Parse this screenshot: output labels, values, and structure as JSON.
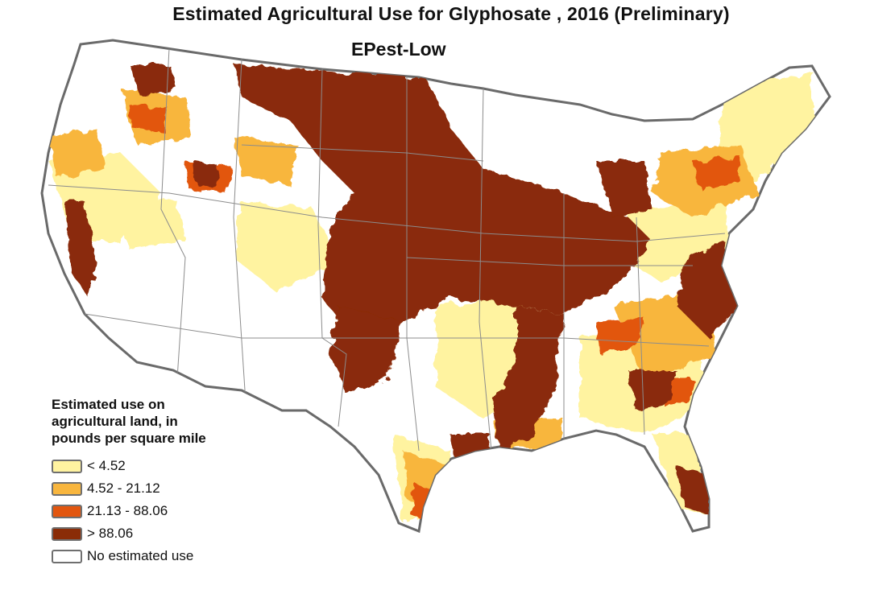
{
  "title": "Estimated Agricultural Use for Glyphosate , 2016 (Preliminary)",
  "subtitle": "EPest-Low",
  "legend": {
    "title_lines": [
      "Estimated use on",
      "agricultural land, in",
      "pounds per square mile"
    ],
    "items": [
      {
        "label": "< 4.52",
        "color": "#fff3a0"
      },
      {
        "label": "4.52 - 21.12",
        "color": "#f8b63e"
      },
      {
        "label": "21.13 - 88.06",
        "color": "#e2560f"
      },
      {
        "label": "> 88.06",
        "color": "#8a2c07"
      },
      {
        "label": "No estimated use",
        "color": "#ffffff"
      }
    ]
  },
  "colors": {
    "outline": "#6a6a6a",
    "state_border": "#8c8c8c"
  }
}
